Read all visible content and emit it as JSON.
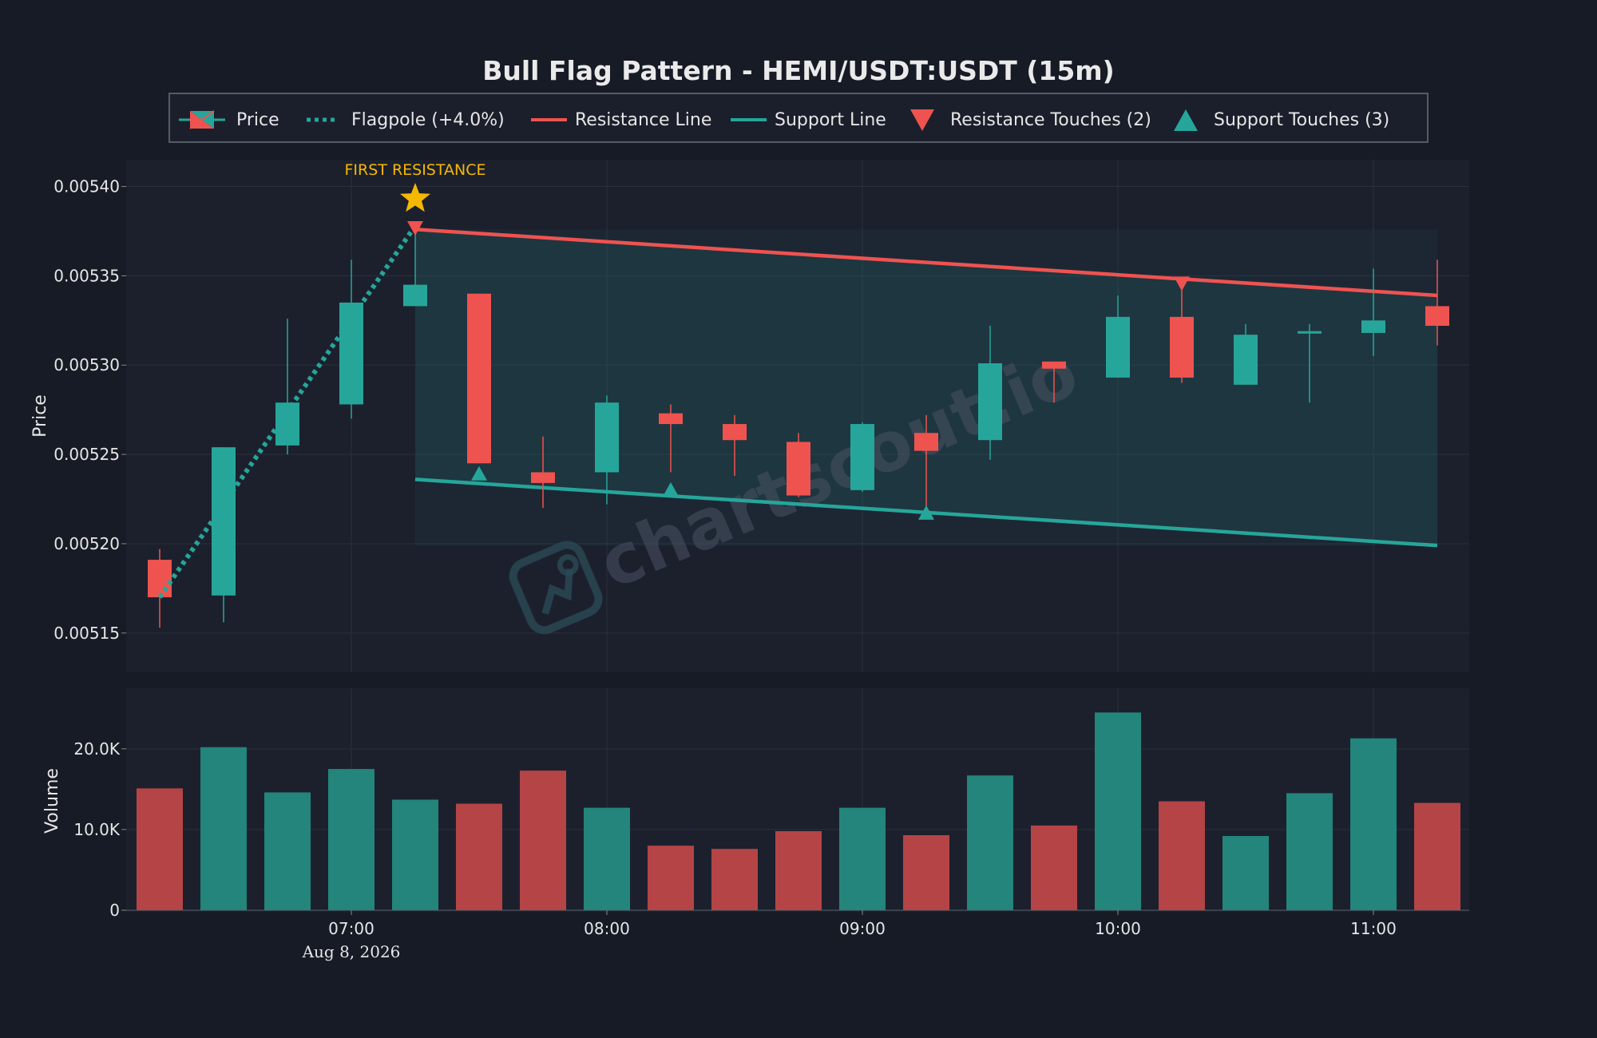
{
  "chart_data": {
    "type": "candlestick",
    "title": "Bull Flag Pattern - HEMI/USDT:USDT (15m)",
    "ylabel": "Price",
    "volume_label": "Volume",
    "date_label": "Aug 8, 2026",
    "x_tick_labels": [
      "07:00",
      "08:00",
      "09:00",
      "10:00",
      "11:00"
    ],
    "y_tick_labels": [
      "0.00540",
      "0.00535",
      "0.00530",
      "0.00525",
      "0.00520",
      "0.00515"
    ],
    "y_ticks": [
      0.0054,
      0.00535,
      0.0053,
      0.00525,
      0.0052,
      0.00515
    ],
    "ylim": [
      0.005128,
      0.005415
    ],
    "volume_tick_labels": [
      "20.0K",
      "10.0K",
      "0"
    ],
    "volume_ticks": [
      20000,
      10000,
      0
    ],
    "volume_ylim": [
      0,
      27500
    ],
    "times": [
      "06:15",
      "06:30",
      "06:45",
      "07:00",
      "07:15",
      "07:30",
      "07:45",
      "08:00",
      "08:15",
      "08:30",
      "08:45",
      "09:00",
      "09:15",
      "09:30",
      "09:45",
      "10:00",
      "10:15",
      "10:30",
      "10:45",
      "11:00",
      "11:15"
    ],
    "open": [
      0.005191,
      0.005171,
      0.005255,
      0.005278,
      0.005333,
      0.00534,
      0.00524,
      0.00524,
      0.005273,
      0.005267,
      0.005257,
      0.00523,
      0.005262,
      0.005258,
      0.005302,
      0.005293,
      0.005327,
      0.005289,
      0.005318,
      0.005318,
      0.005333
    ],
    "high": [
      0.005197,
      0.005254,
      0.005326,
      0.005359,
      0.005378,
      0.00534,
      0.00526,
      0.005283,
      0.005278,
      0.005272,
      0.005262,
      0.005268,
      0.005272,
      0.005322,
      0.005302,
      0.005339,
      0.005347,
      0.005323,
      0.005323,
      0.005354,
      0.005359
    ],
    "low": [
      0.005153,
      0.005156,
      0.00525,
      0.00527,
      0.005333,
      0.005245,
      0.00522,
      0.005222,
      0.00524,
      0.005238,
      0.005226,
      0.005229,
      0.005216,
      0.005247,
      0.005279,
      0.005293,
      0.00529,
      0.005289,
      0.005279,
      0.005305,
      0.005311
    ],
    "close": [
      0.00517,
      0.005254,
      0.005279,
      0.005335,
      0.005345,
      0.005245,
      0.005234,
      0.005279,
      0.005267,
      0.005258,
      0.005227,
      0.005267,
      0.005252,
      0.005301,
      0.005298,
      0.005327,
      0.005293,
      0.005317,
      0.005319,
      0.005325,
      0.005322
    ],
    "volume": [
      15100,
      20200,
      14600,
      17500,
      13700,
      13200,
      17300,
      12700,
      8000,
      7600,
      9800,
      12700,
      9300,
      16700,
      10500,
      24500,
      13500,
      9200,
      14500,
      21300,
      13300
    ],
    "series": [
      {
        "name": "Price"
      },
      {
        "name": "Flagpole (+4.0%)",
        "from": [
          "06:15",
          0.00517
        ],
        "to": [
          "07:15",
          0.005378
        ]
      },
      {
        "name": "Resistance Line",
        "from": [
          "07:15",
          0.005376
        ],
        "to": [
          "11:15",
          0.005339
        ]
      },
      {
        "name": "Support Line",
        "from": [
          "07:15",
          0.005236
        ],
        "to": [
          "11:15",
          0.005199
        ]
      },
      {
        "name": "Resistance Touches (2)",
        "points": [
          [
            "07:15",
            0.005377
          ],
          [
            "10:15",
            0.005346
          ]
        ]
      },
      {
        "name": "Support Touches (3)",
        "points": [
          [
            "07:30",
            0.005239
          ],
          [
            "08:15",
            0.00523
          ],
          [
            "09:15",
            0.005217
          ]
        ]
      }
    ],
    "annotation": {
      "text": "FIRST RESISTANCE",
      "at": [
        "07:15",
        0.005394
      ]
    },
    "legend_position": "top-center",
    "grid": true,
    "colors": {
      "up": "#26a69a",
      "down": "#ef5350",
      "flagpole": "#26a69a",
      "resistance": "#ef5350",
      "support": "#26a69a",
      "annotation": "#f5b800",
      "background": "#161b26",
      "panel": "#1c202d"
    }
  },
  "watermark": "chartscout.io"
}
